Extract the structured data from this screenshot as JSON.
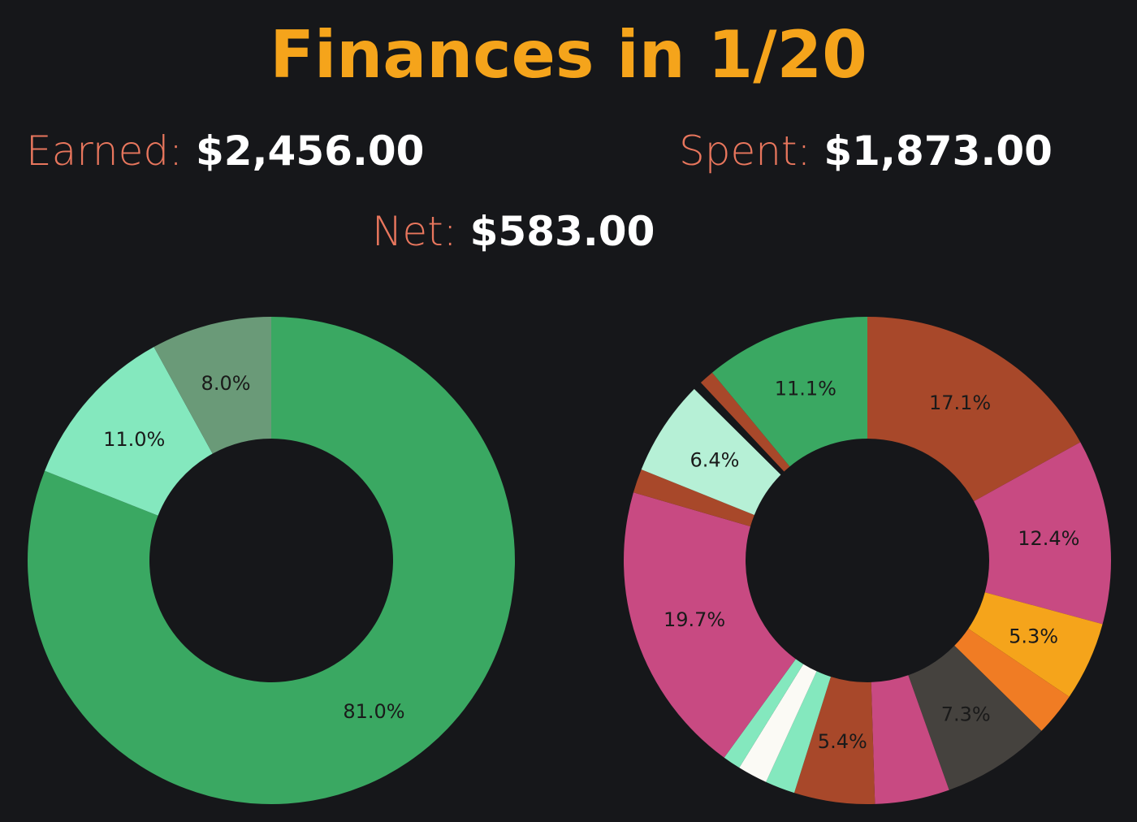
{
  "title": "Finances in 1/20",
  "stats": {
    "earned": {
      "label": "Earned:",
      "value": "$2,456.00"
    },
    "spent": {
      "label": "Spent:",
      "value": "$1,873.00"
    },
    "net": {
      "label": "Net:",
      "value": "$583.00"
    }
  },
  "chart_data": [
    {
      "type": "pie",
      "hole": 0.5,
      "direction": "clockwise",
      "start": "top",
      "slices": [
        {
          "value": 81.0,
          "label": "81.0%",
          "color": "#3aa862"
        },
        {
          "value": 11.0,
          "label": "11.0%",
          "color": "#84e8be"
        },
        {
          "value": 8.0,
          "label": "8.0%",
          "color": "#6a9a78"
        }
      ]
    },
    {
      "type": "pie",
      "hole": 0.5,
      "direction": "clockwise",
      "start": "top",
      "slices": [
        {
          "value": 17.1,
          "label": "17.1%",
          "color": "#a8482a"
        },
        {
          "value": 12.4,
          "label": "12.4%",
          "color": "#c84a82"
        },
        {
          "value": 5.3,
          "label": "5.3%",
          "color": "#f5a41b"
        },
        {
          "value": 2.9,
          "label": "",
          "color": "#f07c24"
        },
        {
          "value": 7.3,
          "label": "7.3%",
          "color": "#45423e"
        },
        {
          "value": 5.0,
          "label": "",
          "color": "#c84a82"
        },
        {
          "value": 5.4,
          "label": "5.4%",
          "color": "#a8482a"
        },
        {
          "value": 2.0,
          "label": "",
          "color": "#84e8be"
        },
        {
          "value": 2.0,
          "label": "",
          "color": "#fbfaf5"
        },
        {
          "value": 1.2,
          "label": "",
          "color": "#84e8be"
        },
        {
          "value": 19.7,
          "label": "19.7%",
          "color": "#c84a82"
        },
        {
          "value": 1.6,
          "label": "",
          "color": "#a8482a"
        },
        {
          "value": 6.4,
          "label": "6.4%",
          "color": "#b6f0d6"
        },
        {
          "value": 0.6,
          "label": "",
          "color": "#16171a"
        },
        {
          "value": 1.0,
          "label": "",
          "color": "#a8482a"
        },
        {
          "value": 11.1,
          "label": "11.1%",
          "color": "#3aa862"
        }
      ]
    }
  ]
}
